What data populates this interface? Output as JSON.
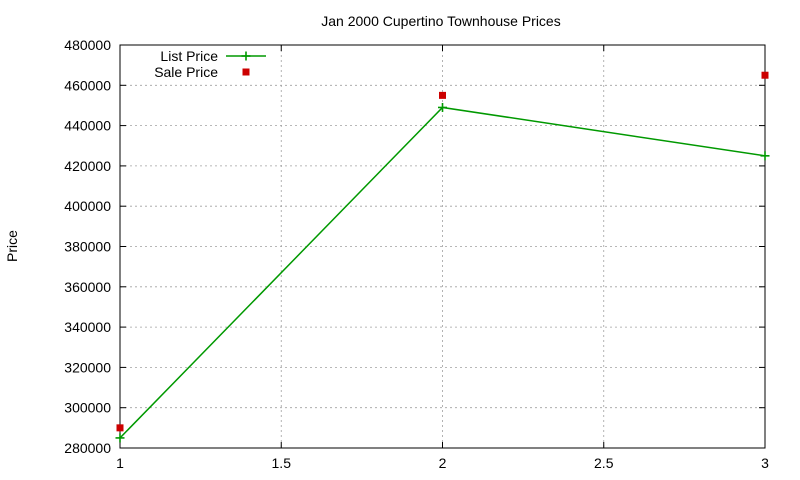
{
  "chart_data": {
    "type": "line",
    "title": "Jan 2000 Cupertino Townhouse Prices",
    "xlabel": "",
    "ylabel": "Price",
    "xlim": [
      1,
      3
    ],
    "ylim": [
      280000,
      480000
    ],
    "x_ticks": [
      1,
      1.5,
      2,
      2.5,
      3
    ],
    "y_ticks": [
      280000,
      300000,
      320000,
      340000,
      360000,
      380000,
      400000,
      420000,
      440000,
      460000,
      480000
    ],
    "grid": true,
    "legend_position": "top-left",
    "series": [
      {
        "name": "List Price",
        "style": "linespoints",
        "marker": "plus",
        "color": "#009900",
        "x": [
          1,
          2,
          3
        ],
        "y": [
          285000,
          449000,
          425000
        ]
      },
      {
        "name": "Sale Price",
        "style": "points",
        "marker": "square",
        "color": "#cc0000",
        "x": [
          1,
          2,
          3
        ],
        "y": [
          290000,
          455000,
          465000
        ]
      }
    ]
  }
}
